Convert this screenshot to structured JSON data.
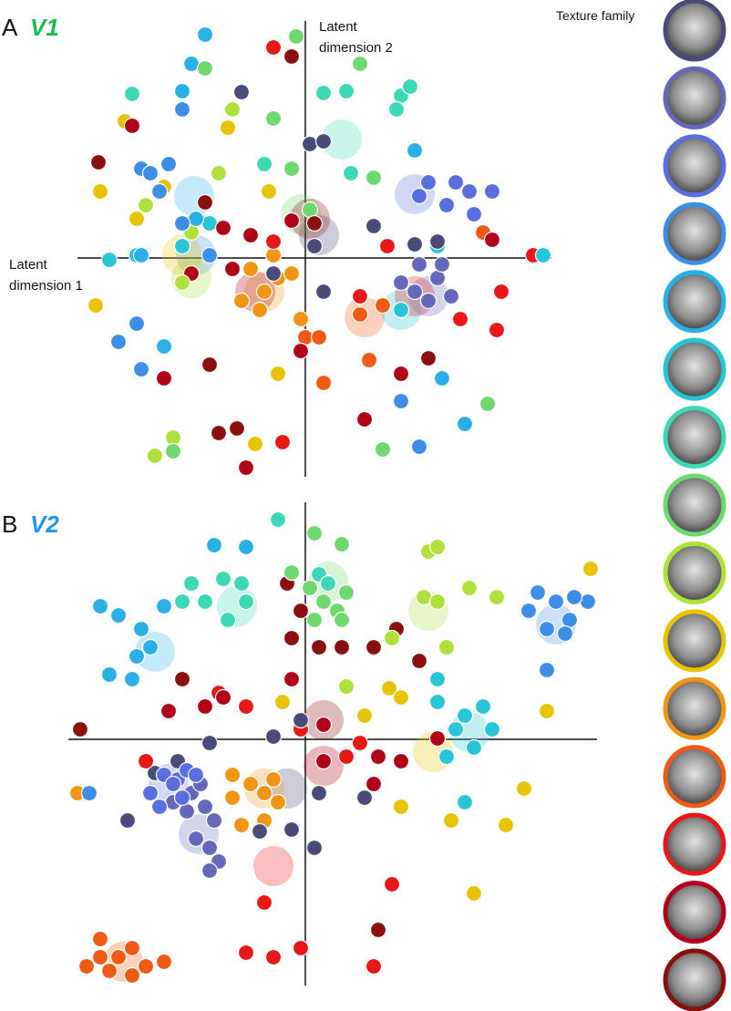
{
  "texture_family_label": "Texture family",
  "chart_data": [
    {
      "type": "scatter",
      "panel": "A",
      "title": "V1",
      "title_color": "#1db954",
      "x_label": "Latent dimension 1",
      "y_label": "Latent dimension 2",
      "xlim": [
        -25,
        27
      ],
      "ylim": [
        -24,
        26
      ],
      "series": [
        {
          "color": "#4b4b7a",
          "x": [
            -7,
            0.5,
            2,
            7.5,
            12,
            -3.5,
            2,
            1,
            14.5
          ],
          "values": [
            18.2,
            12.5,
            12.8,
            3.5,
            1.5,
            -1.7,
            -3.7,
            1.3,
            1.8
          ],
          "centroid": [
            1.5,
            2.5
          ]
        },
        {
          "color": "#6666bb",
          "x": [
            12.5,
            14.5,
            16,
            13.5,
            12,
            10.5,
            15
          ],
          "values": [
            -0.7,
            -2.2,
            -4.2,
            -4.7,
            -3.7,
            -2.7,
            -0.7
          ],
          "centroid": [
            13.5,
            -4.2
          ]
        },
        {
          "color": "#5a6ee0",
          "x": [
            12.5,
            15.5,
            18,
            20.5,
            16.5,
            13.5,
            18.5
          ],
          "values": [
            6.8,
            5.8,
            7.3,
            7.3,
            8.3,
            8.3,
            4.8
          ],
          "centroid": [
            12,
            7
          ]
        },
        {
          "color": "#3d8ee6",
          "x": [
            -18,
            -17,
            -15,
            -13.5,
            -16,
            -10.5,
            -20.5,
            -18,
            10.5,
            12.5,
            -18.5,
            -13.5
          ],
          "values": [
            9.8,
            9.3,
            10.3,
            16.3,
            7.3,
            0.3,
            -9.2,
            -12.2,
            -15.7,
            -20.7,
            -7.2,
            3.8
          ],
          "centroid": [
            -12,
            0.3
          ]
        },
        {
          "color": "#2ab0e6",
          "x": [
            -11,
            -12.5,
            -13.5,
            -15.5,
            12,
            15,
            17.5,
            -12,
            -18
          ],
          "values": [
            24.5,
            21.3,
            18.3,
            -9.7,
            11.8,
            -13.2,
            -18.2,
            4.3,
            0.3
          ],
          "centroid": [
            -12.2,
            6.8
          ]
        },
        {
          "color": "#27c5d6",
          "x": [
            -18.5,
            -13.5,
            -10.5,
            10.5,
            14.5,
            -21.5,
            26.1
          ],
          "values": [
            0.3,
            1.3,
            3.8,
            -5.7,
            1.3,
            -0.2,
            0.3
          ],
          "centroid": [
            10.5,
            -5.7
          ]
        },
        {
          "color": "#3dd9b5",
          "x": [
            -19,
            -4.5,
            2,
            4.5,
            10.5,
            10,
            11.5,
            5
          ],
          "values": [
            18,
            10.3,
            18.1,
            18.3,
            17.8,
            16.3,
            18.8,
            9.3
          ],
          "centroid": [
            4,
            13
          ]
        },
        {
          "color": "#6fd86f",
          "x": [
            -1,
            -3.5,
            -1.5,
            0.5,
            6,
            7.5,
            20,
            8.5,
            -14.5,
            -11
          ],
          "values": [
            24.3,
            15.3,
            9.8,
            5.3,
            21.3,
            8.8,
            -16,
            -21,
            -21.2,
            20.8
          ],
          "centroid": [
            -0.5,
            4.8
          ]
        },
        {
          "color": "#b0e03c",
          "x": [
            -9.5,
            -8,
            -13.5,
            -12.5,
            -17.5,
            -16.5,
            -14.5
          ],
          "values": [
            9.3,
            16.3,
            -2.7,
            2.8,
            5.8,
            -21.7,
            -19.7
          ],
          "centroid": [
            -12.5,
            -2.2
          ]
        },
        {
          "color": "#e8c400",
          "x": [
            -19.8,
            -22.5,
            -18.5,
            -15.5,
            -8.5,
            -4,
            -23,
            -3,
            -5.5
          ],
          "values": [
            15,
            7.3,
            4.3,
            7.8,
            14.3,
            7.3,
            -5.2,
            -12.7,
            -20.4
          ],
          "centroid": [
            -13.5,
            0.3
          ]
        },
        {
          "color": "#f09614",
          "x": [
            -6,
            -4.5,
            -3,
            -1.5,
            -3.5,
            -5,
            -0.5,
            -7
          ],
          "values": [
            -1.2,
            -3.7,
            -2.2,
            -1.7,
            0.3,
            -5.7,
            -6.7,
            -4.7
          ],
          "centroid": [
            -4.5,
            -3.7
          ]
        },
        {
          "color": "#f05a14",
          "x": [
            6,
            8.5,
            0,
            1.5,
            7,
            19.5,
            2
          ],
          "values": [
            -6.2,
            -5.2,
            -8.7,
            -8.7,
            -11.2,
            2.8,
            -13.7
          ],
          "centroid": [
            6.5,
            -6.5
          ]
        },
        {
          "color": "#e81818",
          "x": [
            -3.5,
            9,
            25,
            17,
            6,
            21.5,
            -2.5,
            -3.5,
            21
          ],
          "values": [
            23.1,
            1.3,
            0.3,
            -6.7,
            -4.2,
            -3.7,
            -20.2,
            1.8,
            -7.9
          ],
          "centroid": [
            12,
            -4.2
          ]
        },
        {
          "color": "#b0001a",
          "x": [
            -19,
            -12.5,
            -9,
            -8,
            -6,
            -1.5,
            6.5,
            10.5,
            -6.5,
            -15.5,
            -0.5,
            20.5
          ],
          "values": [
            14.5,
            -1.7,
            3.3,
            -1.2,
            2.5,
            4.1,
            -17.7,
            -12.7,
            -23,
            -13.2,
            -10.2,
            2
          ],
          "centroid": [
            -5.5,
            -3.7
          ]
        },
        {
          "color": "#8a1010",
          "x": [
            -22.7,
            -11,
            -7.5,
            -9.5,
            -1.5,
            -10.5,
            1,
            13.5
          ],
          "values": [
            10.5,
            6.1,
            -18.7,
            -19.2,
            22.1,
            -11.7,
            3.8,
            -11
          ],
          "centroid": [
            0.5,
            4.3
          ]
        }
      ]
    },
    {
      "type": "scatter",
      "panel": "B",
      "title": "V2",
      "title_color": "#2196f3",
      "xlim": [
        -26,
        32
      ],
      "ylim": [
        -27,
        26
      ],
      "series": [
        {
          "color": "#4b4b7a",
          "x": [
            -16.5,
            -14,
            -19.5,
            -10.5,
            -3.5,
            -0.5,
            1.5,
            6.5,
            1,
            -5,
            -1.5
          ],
          "values": [
            -3.7,
            -2.4,
            -8.9,
            -0.4,
            0.3,
            2.1,
            -5.9,
            -6.4,
            -11.9,
            -10.1,
            -9.9
          ],
          "centroid": [
            -2,
            -5.4
          ]
        },
        {
          "color": "#6666bb",
          "x": [
            -12.5,
            -11,
            -10,
            -13,
            -11.5,
            -14.5,
            -10.5,
            -9.5,
            -12,
            -10.5
          ],
          "values": [
            -5.9,
            -7.4,
            -8.9,
            -7.9,
            -4.9,
            -6.9,
            -11.9,
            -13.4,
            -10.9,
            -14.4
          ],
          "centroid": [
            -11.7,
            -10.4
          ]
        },
        {
          "color": "#5a6ee0",
          "x": [
            -15.5,
            -14,
            -13,
            -14.5,
            -12,
            -17,
            -16,
            -13.5
          ],
          "values": [
            -3.9,
            -4.4,
            -3.4,
            -4.9,
            -3.9,
            -5.9,
            -7.4,
            -6.4
          ],
          "centroid": [
            -15,
            -4.9
          ]
        },
        {
          "color": "#3d8ee6",
          "x": [
            25.5,
            27.5,
            29,
            26.5,
            28.5,
            31,
            24.5,
            26.5,
            29.5,
            -23.7
          ],
          "values": [
            16.1,
            15.1,
            13.1,
            12.1,
            11.6,
            15.1,
            14.1,
            7.6,
            15.6,
            -5.9
          ],
          "centroid": [
            27.5,
            12.6
          ]
        },
        {
          "color": "#2ab0e6",
          "x": [
            -22.5,
            -20.5,
            -18,
            -17,
            -19,
            -21.5,
            -18.5,
            -15.5,
            -10,
            -6.5
          ],
          "values": [
            14.6,
            13.6,
            12.1,
            10.1,
            6.6,
            7.1,
            9.1,
            14.6,
            21.3,
            21.1
          ],
          "centroid": [
            -16.5,
            9.6
          ]
        },
        {
          "color": "#27c5d6",
          "x": [
            14.5,
            16.5,
            17.5,
            19.5,
            20.5,
            14.5,
            17.5,
            18.5,
            15.5
          ],
          "values": [
            4.1,
            1.1,
            2.6,
            3.6,
            1.1,
            6.6,
            -6.9,
            -0.9,
            -1.9
          ],
          "centroid": [
            18,
            0.8
          ]
        },
        {
          "color": "#3dd9b5",
          "x": [
            -12.5,
            -9,
            -6.5,
            -7,
            -8.5,
            -11,
            1.5,
            2.5,
            -3,
            -13.5
          ],
          "values": [
            17.1,
            17.6,
            15.1,
            17.1,
            13.1,
            15.1,
            18.1,
            17.1,
            24.1,
            15.1
          ],
          "centroid": [
            -7.5,
            14.6
          ]
        },
        {
          "color": "#6fd86f",
          "x": [
            0.5,
            2,
            3.5,
            1,
            4,
            4.5,
            1,
            4,
            -1.5
          ],
          "values": [
            16.6,
            15.1,
            14.1,
            13.1,
            13.1,
            16.1,
            22.6,
            21.4,
            18.3
          ],
          "centroid": [
            2.5,
            17.3
          ]
        },
        {
          "color": "#b0e03c",
          "x": [
            13,
            14.5,
            13.5,
            14.5,
            15.5,
            21,
            18,
            9.5,
            4.5
          ],
          "values": [
            15.6,
            15.1,
            20.6,
            21.1,
            10.1,
            15.6,
            16.6,
            11.1,
            5.8
          ],
          "centroid": [
            13.5,
            14.1
          ]
        },
        {
          "color": "#e8c400",
          "x": [
            9.2,
            10.5,
            6.5,
            -2.5,
            24,
            22,
            18.5,
            26.5,
            31.3,
            10.5,
            16
          ],
          "values": [
            5.6,
            4.6,
            2.6,
            4.1,
            -5.4,
            -9.4,
            -16.9,
            3.1,
            18.7,
            -7.4,
            -8.9
          ],
          "centroid": [
            14,
            -1.4
          ]
        },
        {
          "color": "#f09614",
          "x": [
            -8,
            -6,
            -4.5,
            -3.5,
            -3,
            -8,
            -4.5,
            -25,
            -7
          ],
          "values": [
            -3.9,
            -4.9,
            -5.9,
            -4.4,
            -6.9,
            -6.4,
            -8.9,
            -5.9,
            -9.4
          ],
          "centroid": [
            -4.5,
            -5.4
          ]
        },
        {
          "color": "#f05a14",
          "x": [
            -22.5,
            -20.5,
            -19,
            -22.5,
            -15.5,
            -17.5,
            -21.5,
            -24,
            -19
          ],
          "values": [
            -21.9,
            -23.9,
            -22.9,
            -23.9,
            -24.4,
            -24.9,
            -25.4,
            -24.9,
            -25.9
          ],
          "centroid": [
            -20,
            -24.4
          ]
        },
        {
          "color": "#e81818",
          "x": [
            -17.5,
            -9.5,
            -6.5,
            -0.5,
            6,
            4.5,
            -4.5,
            -0.5,
            9.5,
            -6.5,
            -3.5,
            7.5
          ],
          "values": [
            -2.4,
            5.1,
            3.6,
            1.1,
            -0.4,
            -1.9,
            -17.9,
            -22.9,
            -15.9,
            -23.4,
            -23.9,
            -24.9
          ],
          "centroid": [
            -3.5,
            -13.9
          ]
        },
        {
          "color": "#b0001a",
          "x": [
            -15,
            -11,
            -9,
            -1.5,
            2,
            2,
            8,
            7.5,
            10.5,
            14.5
          ],
          "values": [
            3.1,
            3.6,
            4.6,
            6.6,
            1.6,
            -2.4,
            -1.9,
            -4.9,
            -2.4,
            0.1
          ],
          "centroid": [
            2,
            -2.9
          ]
        },
        {
          "color": "#8a1010",
          "x": [
            -24.7,
            -13.5,
            -1.5,
            -2,
            1.5,
            4,
            10,
            12.5,
            7.5,
            -0.5,
            8
          ],
          "values": [
            1.1,
            6.6,
            11.1,
            17.1,
            10.1,
            10.1,
            12.1,
            8.6,
            10.1,
            14.1,
            -20.9
          ],
          "centroid": [
            2,
            2.1
          ]
        }
      ]
    }
  ]
}
